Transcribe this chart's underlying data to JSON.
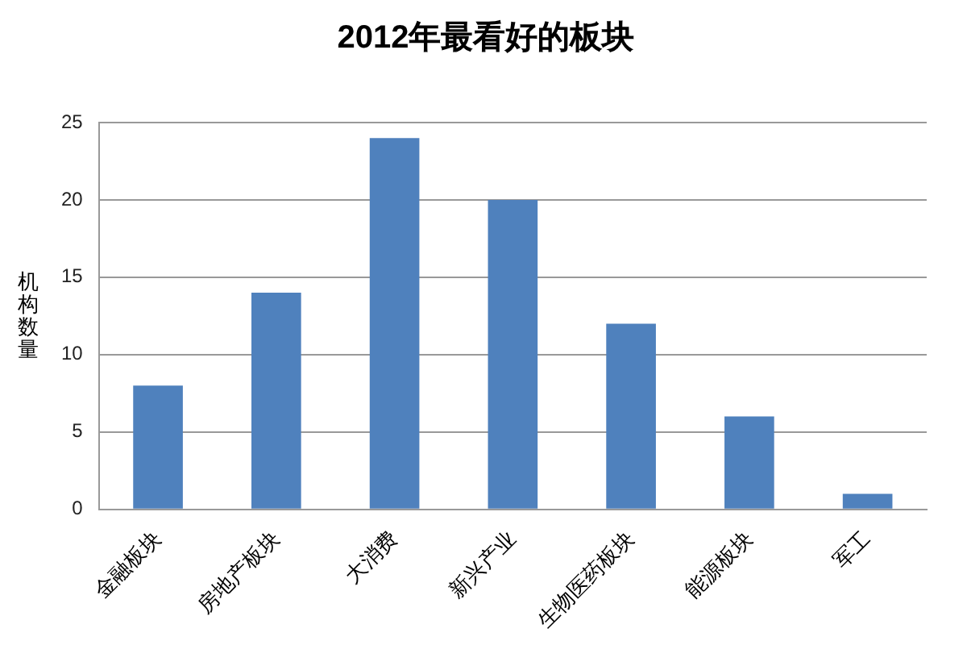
{
  "chart_data": {
    "type": "bar",
    "title": "2012年最看好的板块",
    "ylabel": "机构数量",
    "categories": [
      "金融板块",
      "房地产板块",
      "大消费",
      "新兴产业",
      "生物医药板块",
      "能源板块",
      "军工"
    ],
    "values": [
      8,
      14,
      24,
      20,
      12,
      6,
      1
    ],
    "color": "#4f81bd",
    "ylim": [
      0,
      25
    ],
    "yticks": [
      0,
      5,
      10,
      15,
      20,
      25
    ],
    "grid": "y"
  }
}
